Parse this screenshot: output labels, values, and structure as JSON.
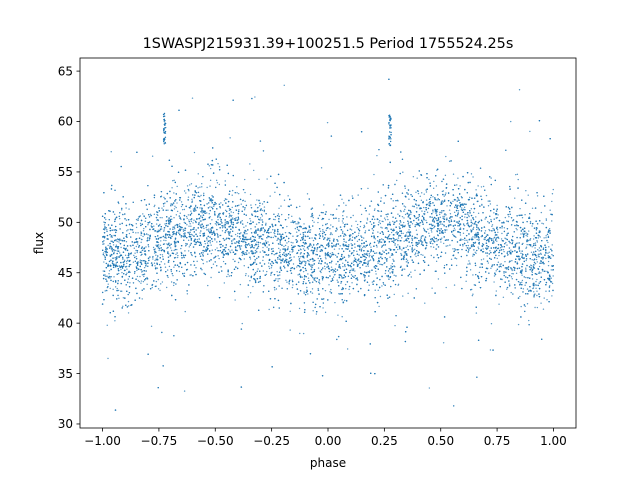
{
  "chart_data": {
    "type": "scatter",
    "title": "1SWASPJ215931.39+100251.5 Period 1755524.25s",
    "xlabel": "phase",
    "ylabel": "flux",
    "xlim": [
      -1.1,
      1.1
    ],
    "ylim": [
      29.6,
      66.3
    ],
    "xticks": [
      -1.0,
      -0.75,
      -0.5,
      -0.25,
      0.0,
      0.25,
      0.5,
      0.75,
      1.0
    ],
    "xtick_labels": [
      "−1.00",
      "−0.75",
      "−0.50",
      "−0.25",
      "0.00",
      "0.25",
      "0.50",
      "0.75",
      "1.00"
    ],
    "yticks": [
      30,
      35,
      40,
      45,
      50,
      55,
      60,
      65
    ],
    "ytick_labels": [
      "30",
      "35",
      "40",
      "45",
      "50",
      "55",
      "60",
      "65"
    ],
    "grid": false,
    "legend": "none",
    "marker_color": "#1f77b4",
    "phase_range": [
      -1.0,
      1.0
    ],
    "mean_curve": {
      "phase": [
        -1.0,
        -0.9,
        -0.8,
        -0.7,
        -0.6,
        -0.5,
        -0.4,
        -0.3,
        -0.2,
        -0.1,
        0.0,
        0.1,
        0.2,
        0.3,
        0.4,
        0.5,
        0.6,
        0.7,
        0.8,
        0.9,
        1.0
      ],
      "flux": [
        46.5,
        46.8,
        47.5,
        48.6,
        49.6,
        49.8,
        49.0,
        48.2,
        47.3,
        46.6,
        46.4,
        46.7,
        47.4,
        48.5,
        49.5,
        49.8,
        49.1,
        48.3,
        47.4,
        46.7,
        46.4
      ]
    },
    "scatter_spread": {
      "core_sigma": 2.3,
      "outlier_min": 31.2,
      "outlier_max": 64.5
    },
    "spikes": [
      {
        "phase": -0.725,
        "flux_min": 57.6,
        "flux_max": 60.8
      },
      {
        "phase": 0.275,
        "flux_min": 57.6,
        "flux_max": 60.8
      }
    ]
  }
}
